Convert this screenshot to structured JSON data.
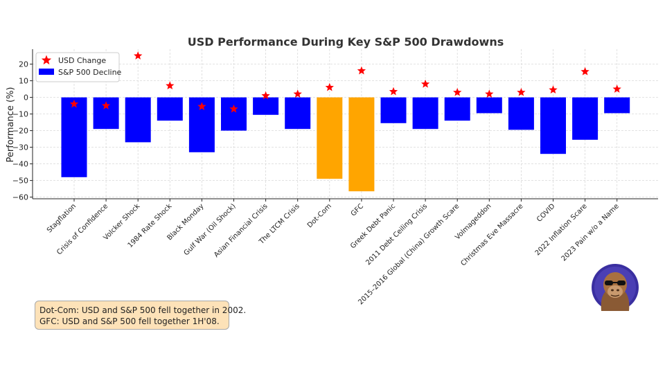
{
  "chart_data": {
    "type": "bar",
    "title": "USD Performance During Key S&P 500 Drawdowns",
    "xlabel": "",
    "ylabel": "Performance (%)",
    "ylim": [
      -61,
      29
    ],
    "yticks": [
      20,
      10,
      0,
      -10,
      -20,
      -30,
      -40,
      -50,
      -60
    ],
    "grid": true,
    "legend_position": "top-left",
    "categories": [
      "Stagflation",
      "Crisis of Confidence",
      "Volcker Shock",
      "1984 Rate Shock",
      "Black Monday",
      "Gulf War (Oil Shock)",
      "Asian Financial Crisis",
      "The LTCM Crisis",
      "Dot-Com",
      "GFC",
      "Greek Debt Panic",
      "2011 Debt Ceiling Crisis",
      "2015–2016 Global (China) Growth Scare",
      "Volmageddon",
      "Christmas Eve Massacre",
      "COVID",
      "2022 Inflation Scare",
      "2023 Pain w/o a Name"
    ],
    "series": [
      {
        "name": "S&P 500 Decline",
        "kind": "bar",
        "color": "#0000ff",
        "highlight_color": "#ffa500",
        "highlight_categories": [
          "Dot-Com",
          "GFC"
        ],
        "values": [
          -48,
          -19,
          -27,
          -14,
          -33,
          -20,
          -10.5,
          -19,
          -49,
          -56.5,
          -15.5,
          -19,
          -14,
          -9.5,
          -19.5,
          -34,
          -25.5,
          -9.5
        ]
      },
      {
        "name": "USD Change",
        "kind": "marker",
        "marker": "star",
        "color": "#ff0000",
        "values": [
          -4,
          -5,
          25,
          7,
          -5.5,
          -7,
          1,
          2,
          6,
          16,
          3.5,
          8,
          3,
          2,
          3,
          4.5,
          15.5,
          5
        ]
      }
    ]
  },
  "notes": {
    "line1": "Dot-Com: USD and S&P 500 fell together in 2002.",
    "line2": "GFC: USD and S&P 500 fell together 1H'08."
  },
  "avatar": {
    "icon": "gorilla-sunglasses-avatar",
    "bg_color": "#3a2fa0"
  }
}
